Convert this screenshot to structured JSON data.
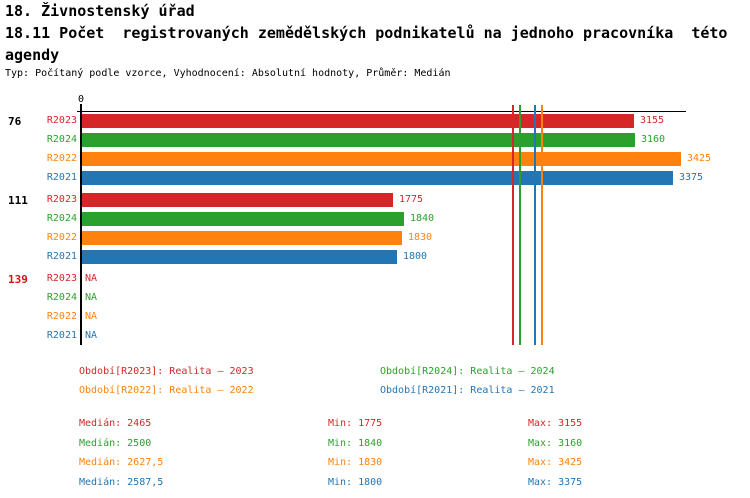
{
  "header": {
    "title": "18. Živnostenský úřad",
    "subtitle": "18.11 Počet  registrovaných zemědělských podnikatelů na jednoho pracovníka  této agendy",
    "meta": "Typ: Počítaný podle vzorce, Vyhodnocení: Absolutní hodnoty, Průměr: Medián"
  },
  "colors": {
    "R2023": "#d62728",
    "R2024": "#2ca02c",
    "R2022": "#ff820e",
    "R2021": "#2276b4",
    "axis": "#000000",
    "highlight_group": "#dd1111"
  },
  "chart_data": {
    "type": "bar",
    "orientation": "horizontal",
    "series_order": [
      "R2023",
      "R2024",
      "R2022",
      "R2021"
    ],
    "series_colors": {
      "R2023": "#d62728",
      "R2024": "#2ca02c",
      "R2022": "#ff820e",
      "R2021": "#2276b4"
    },
    "groups": [
      {
        "label": "76",
        "label_color": "#000000",
        "values": {
          "R2023": 3155,
          "R2024": 3160,
          "R2022": 3425,
          "R2021": 3375
        }
      },
      {
        "label": "111",
        "label_color": "#000000",
        "values": {
          "R2023": 1775,
          "R2024": 1840,
          "R2022": 1830,
          "R2021": 1800
        }
      },
      {
        "label": "139",
        "label_color": "#dd1111",
        "values": {
          "R2023": "NA",
          "R2024": "NA",
          "R2022": "NA",
          "R2021": "NA"
        }
      }
    ],
    "medians": {
      "R2023": 2465,
      "R2024": 2500,
      "R2022": 2627.5,
      "R2021": 2587.5
    },
    "axis": {
      "origin_label": "0",
      "xlim": [
        0,
        3450
      ],
      "gridlines": false
    },
    "legend_position": "bottom"
  },
  "legend": {
    "items": [
      {
        "id": "R2023",
        "text": "Období[R2023]: Realita – 2023",
        "color": "#d62728"
      },
      {
        "id": "R2024",
        "text": "Období[R2024]: Realita – 2024",
        "color": "#2ca02c"
      },
      {
        "id": "R2022",
        "text": "Období[R2022]: Realita – 2022",
        "color": "#ff820e"
      },
      {
        "id": "R2021",
        "text": "Období[R2021]: Realita – 2021",
        "color": "#2276b4"
      }
    ]
  },
  "stats": {
    "rows": [
      {
        "series": "R2023",
        "color": "#d62728",
        "median": "Medián: 2465",
        "min": "Min: 1775",
        "max": "Max: 3155"
      },
      {
        "series": "R2024",
        "color": "#2ca02c",
        "median": "Medián: 2500",
        "min": "Min: 1840",
        "max": "Max: 3160"
      },
      {
        "series": "R2022",
        "color": "#ff820e",
        "median": "Medián: 2627,5",
        "min": "Min: 1830",
        "max": "Max: 3425"
      },
      {
        "series": "R2021",
        "color": "#2276b4",
        "median": "Medián: 2587,5",
        "min": "Min: 1800",
        "max": "Max: 3375"
      }
    ]
  }
}
